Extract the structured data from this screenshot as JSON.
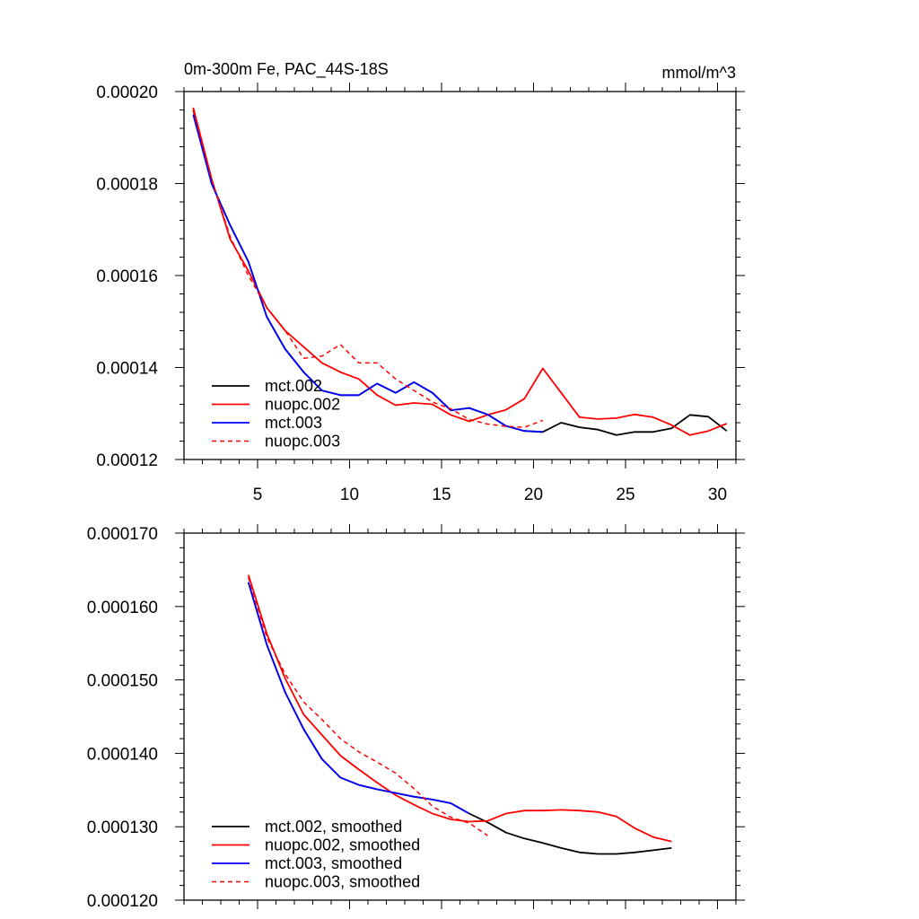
{
  "chart_data": [
    {
      "type": "line",
      "title": "0m-300m Fe, PAC_44S-18S",
      "units": "mmol/m^3",
      "xlim": [
        1,
        31
      ],
      "ylim": [
        0.00012,
        0.0002
      ],
      "xticks": [
        5,
        10,
        15,
        20,
        25,
        30
      ],
      "xtick_labels": [
        "5",
        "10",
        "15",
        "20",
        "25",
        "30"
      ],
      "yticks": [
        0.00012,
        0.00014,
        0.00016,
        0.00018,
        0.0002
      ],
      "ytick_labels": [
        "0.00012",
        "0.00014",
        "0.00016",
        "0.00018",
        "0.00020"
      ],
      "legend_position": "bottom-left",
      "series": [
        {
          "name": "mct.002",
          "color": "#000000",
          "dash": "solid",
          "x": [
            1.5,
            2.5,
            3.5,
            4.5,
            5.5,
            6.5,
            7.5,
            8.5,
            9.5,
            10.5,
            11.5,
            12.5,
            13.5,
            14.5,
            15.5,
            16.5,
            17.5,
            18.5,
            19.5,
            20.5,
            21.5,
            22.5,
            23.5,
            24.5,
            25.5,
            26.5,
            27.5,
            28.5,
            29.5,
            30.5
          ],
          "values": [
            0.000196,
            0.00018,
            0.000171,
            0.000163,
            0.000151,
            0.000144,
            0.000139,
            0.000135,
            0.000134,
            0.000134,
            0.0001365,
            0.0001345,
            0.0001368,
            0.0001345,
            0.0001307,
            0.0001312,
            0.0001298,
            0.0001273,
            0.0001262,
            0.000126,
            0.000128,
            0.000127,
            0.0001265,
            0.0001253,
            0.000126,
            0.000126,
            0.0001268,
            0.0001297,
            0.0001293,
            0.0001262
          ]
        },
        {
          "name": "nuopc.002",
          "color": "#ff0000",
          "dash": "solid",
          "x": [
            1.5,
            2.5,
            3.5,
            4.5,
            5.5,
            6.5,
            7.5,
            8.5,
            9.5,
            10.5,
            11.5,
            12.5,
            13.5,
            14.5,
            15.5,
            16.5,
            17.5,
            18.5,
            19.5,
            20.5,
            21.5,
            22.5,
            23.5,
            24.5,
            25.5,
            26.5,
            27.5,
            28.5,
            29.5,
            30.5
          ],
          "values": [
            0.0001965,
            0.000181,
            0.000168,
            0.000161,
            0.000153,
            0.000148,
            0.0001445,
            0.000141,
            0.000139,
            0.0001375,
            0.000134,
            0.0001318,
            0.0001323,
            0.000132,
            0.0001297,
            0.0001283,
            0.0001297,
            0.0001308,
            0.0001332,
            0.0001398,
            0.0001345,
            0.0001292,
            0.0001288,
            0.000129,
            0.0001298,
            0.0001292,
            0.0001275,
            0.0001253,
            0.0001262,
            0.0001278
          ]
        },
        {
          "name": "mct.003",
          "color": "#0000ff",
          "dash": "solid",
          "x": [
            1.5,
            2.5,
            3.5,
            4.5,
            5.5,
            6.5,
            7.5,
            8.5,
            9.5,
            10.5,
            11.5,
            12.5,
            13.5,
            14.5,
            15.5,
            16.5,
            17.5,
            18.5,
            19.5,
            20.5
          ],
          "values": [
            0.000195,
            0.00018,
            0.000171,
            0.000163,
            0.000151,
            0.000144,
            0.000139,
            0.000135,
            0.000134,
            0.000134,
            0.0001365,
            0.0001345,
            0.0001368,
            0.0001345,
            0.0001307,
            0.0001312,
            0.0001298,
            0.0001273,
            0.0001262,
            0.000126
          ]
        },
        {
          "name": "nuopc.003",
          "color": "#ff0000",
          "dash": "dashed",
          "x": [
            1.5,
            2.5,
            3.5,
            4.5,
            5.5,
            6.5,
            7.5,
            8.5,
            9.5,
            10.5,
            11.5,
            12.5,
            13.5,
            14.5,
            15.5,
            16.5,
            17.5,
            18.5,
            19.5,
            20.5
          ],
          "values": [
            0.000196,
            0.000181,
            0.0001685,
            0.00016,
            0.000153,
            0.000148,
            0.000142,
            0.0001425,
            0.000145,
            0.000141,
            0.000141,
            0.0001375,
            0.000135,
            0.0001325,
            0.000131,
            0.0001287,
            0.0001277,
            0.0001272,
            0.000127,
            0.0001285
          ]
        }
      ]
    },
    {
      "type": "line",
      "xlim": [
        1,
        31
      ],
      "ylim": [
        0.00012,
        0.00017
      ],
      "xticks": [
        5,
        10,
        15,
        20,
        25,
        30
      ],
      "yticks": [
        0.00012,
        0.00013,
        0.00014,
        0.00015,
        0.00016,
        0.00017
      ],
      "ytick_labels": [
        "0.000120",
        "0.000130",
        "0.000140",
        "0.000150",
        "0.000160",
        "0.000170"
      ],
      "legend_position": "bottom-left",
      "series": [
        {
          "name": "mct.002, smoothed",
          "color": "#000000",
          "dash": "solid",
          "x": [
            4.5,
            5.5,
            6.5,
            7.5,
            8.5,
            9.5,
            10.5,
            11.5,
            12.5,
            13.5,
            14.5,
            15.5,
            16.5,
            17.5,
            18.5,
            19.5,
            20.5,
            21.5,
            22.5,
            23.5,
            24.5,
            25.5,
            26.5,
            27.5
          ],
          "values": [
            0.0001633,
            0.0001548,
            0.0001483,
            0.0001433,
            0.0001392,
            0.0001367,
            0.0001357,
            0.0001351,
            0.0001346,
            0.0001341,
            0.0001337,
            0.0001332,
            0.0001318,
            0.0001306,
            0.0001292,
            0.0001284,
            0.0001278,
            0.0001271,
            0.0001265,
            0.0001263,
            0.0001263,
            0.0001265,
            0.0001268,
            0.0001271
          ]
        },
        {
          "name": "nuopc.002, smoothed",
          "color": "#ff0000",
          "dash": "solid",
          "x": [
            4.5,
            5.5,
            6.5,
            7.5,
            8.5,
            9.5,
            10.5,
            11.5,
            12.5,
            13.5,
            14.5,
            15.5,
            16.5,
            17.5,
            18.5,
            19.5,
            20.5,
            21.5,
            22.5,
            23.5,
            24.5,
            25.5,
            26.5,
            27.5
          ],
          "values": [
            0.0001643,
            0.0001563,
            0.0001502,
            0.0001453,
            0.0001425,
            0.0001397,
            0.0001378,
            0.000136,
            0.0001343,
            0.000133,
            0.0001318,
            0.000131,
            0.0001307,
            0.0001308,
            0.0001318,
            0.0001322,
            0.0001322,
            0.0001323,
            0.0001322,
            0.000132,
            0.0001314,
            0.0001298,
            0.0001286,
            0.000128
          ]
        },
        {
          "name": "mct.003, smoothed",
          "color": "#0000ff",
          "dash": "solid",
          "x": [
            4.5,
            5.5,
            6.5,
            7.5,
            8.5,
            9.5,
            10.5,
            11.5,
            12.5,
            13.5,
            14.5,
            15.5,
            16.5
          ],
          "values": [
            0.0001633,
            0.0001548,
            0.0001483,
            0.0001433,
            0.0001392,
            0.0001367,
            0.0001357,
            0.0001351,
            0.0001346,
            0.0001341,
            0.0001337,
            0.0001332,
            0.0001318
          ]
        },
        {
          "name": "nuopc.003, smoothed",
          "color": "#ff0000",
          "dash": "dashed",
          "x": [
            4.5,
            5.5,
            6.5,
            7.5,
            8.5,
            9.5,
            10.5,
            11.5,
            12.5,
            13.5,
            14.5,
            15.5,
            16.5,
            17.5
          ],
          "values": [
            0.000164,
            0.0001558,
            0.0001508,
            0.000147,
            0.0001446,
            0.000142,
            0.0001402,
            0.0001388,
            0.0001373,
            0.0001352,
            0.0001328,
            0.0001313,
            0.0001305,
            0.0001288
          ]
        }
      ]
    }
  ]
}
